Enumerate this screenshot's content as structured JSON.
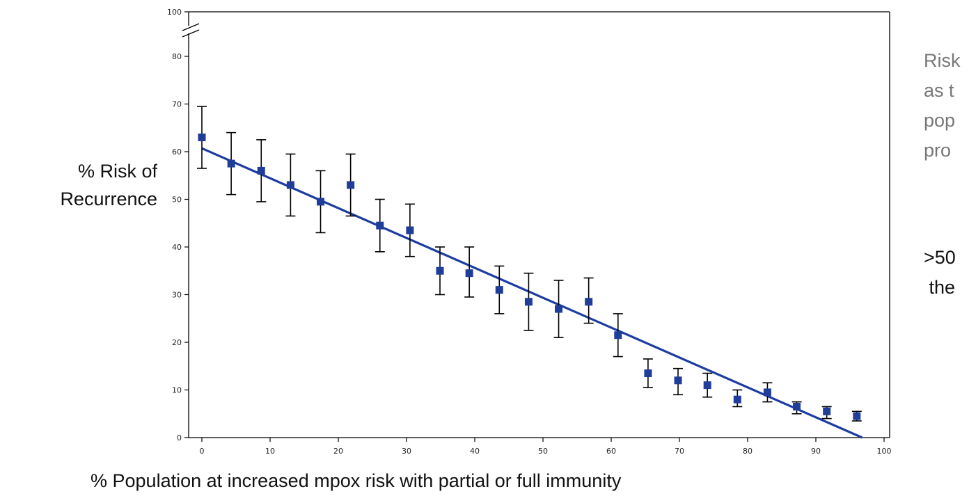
{
  "chart_data": {
    "type": "scatter",
    "ylabel_lines": [
      "% Risk of",
      "Recurrence"
    ],
    "xlabel": "% Population at increased mpox risk with partial or full immunity",
    "xlim": [
      0,
      100
    ],
    "ylim": [
      0,
      100
    ],
    "y_axis_break": [
      85,
      95
    ],
    "x_ticks": [
      "0",
      "10",
      "20",
      "30",
      "40",
      "50",
      "60",
      "70",
      "80",
      "90",
      "100"
    ],
    "y_ticks": [
      "0",
      "10",
      "20",
      "30",
      "40",
      "50",
      "60",
      "70",
      "80",
      "100"
    ],
    "points": [
      {
        "x": 0,
        "y": 63,
        "lo": 56.5,
        "hi": 69.5
      },
      {
        "x": 4.3,
        "y": 57.5,
        "lo": 51,
        "hi": 64
      },
      {
        "x": 8.7,
        "y": 56,
        "lo": 49.5,
        "hi": 62.5
      },
      {
        "x": 13,
        "y": 53,
        "lo": 46.5,
        "hi": 59.5
      },
      {
        "x": 17.4,
        "y": 49.5,
        "lo": 43,
        "hi": 56
      },
      {
        "x": 21.8,
        "y": 53,
        "lo": 46.5,
        "hi": 59.5
      },
      {
        "x": 26.1,
        "y": 44.5,
        "lo": 39,
        "hi": 50
      },
      {
        "x": 30.5,
        "y": 43.5,
        "lo": 38,
        "hi": 49
      },
      {
        "x": 34.9,
        "y": 35,
        "lo": 30,
        "hi": 40
      },
      {
        "x": 39.2,
        "y": 34.5,
        "lo": 29.5,
        "hi": 40
      },
      {
        "x": 43.6,
        "y": 31,
        "lo": 26,
        "hi": 36
      },
      {
        "x": 47.9,
        "y": 28.5,
        "lo": 22.5,
        "hi": 34.5
      },
      {
        "x": 52.3,
        "y": 27,
        "lo": 21,
        "hi": 33
      },
      {
        "x": 56.7,
        "y": 28.5,
        "lo": 24,
        "hi": 33.5
      },
      {
        "x": 61,
        "y": 21.5,
        "lo": 17,
        "hi": 26
      },
      {
        "x": 65.4,
        "y": 13.5,
        "lo": 10.5,
        "hi": 16.5
      },
      {
        "x": 69.8,
        "y": 12,
        "lo": 9,
        "hi": 14.5
      },
      {
        "x": 74.1,
        "y": 11,
        "lo": 8.5,
        "hi": 13.5
      },
      {
        "x": 78.5,
        "y": 8,
        "lo": 6.5,
        "hi": 10
      },
      {
        "x": 82.9,
        "y": 9.5,
        "lo": 7.5,
        "hi": 11.5
      },
      {
        "x": 87.2,
        "y": 6.5,
        "lo": 5,
        "hi": 7.5
      },
      {
        "x": 91.6,
        "y": 5.5,
        "lo": 4,
        "hi": 6.5
      },
      {
        "x": 96,
        "y": 4.5,
        "lo": 3.5,
        "hi": 5.5
      }
    ],
    "trend_line": {
      "x": [
        0,
        96.8
      ],
      "y": [
        60.7,
        0
      ]
    },
    "colors": {
      "marker": "#1f3d99",
      "line": "#1c3ca0",
      "error_bar": "#000000",
      "axis": "#000000"
    }
  },
  "side_text": {
    "lines_grey": [
      "Risk",
      "as t",
      "pop",
      "pro"
    ],
    "lines_dark": [
      ">50",
      " the"
    ]
  }
}
